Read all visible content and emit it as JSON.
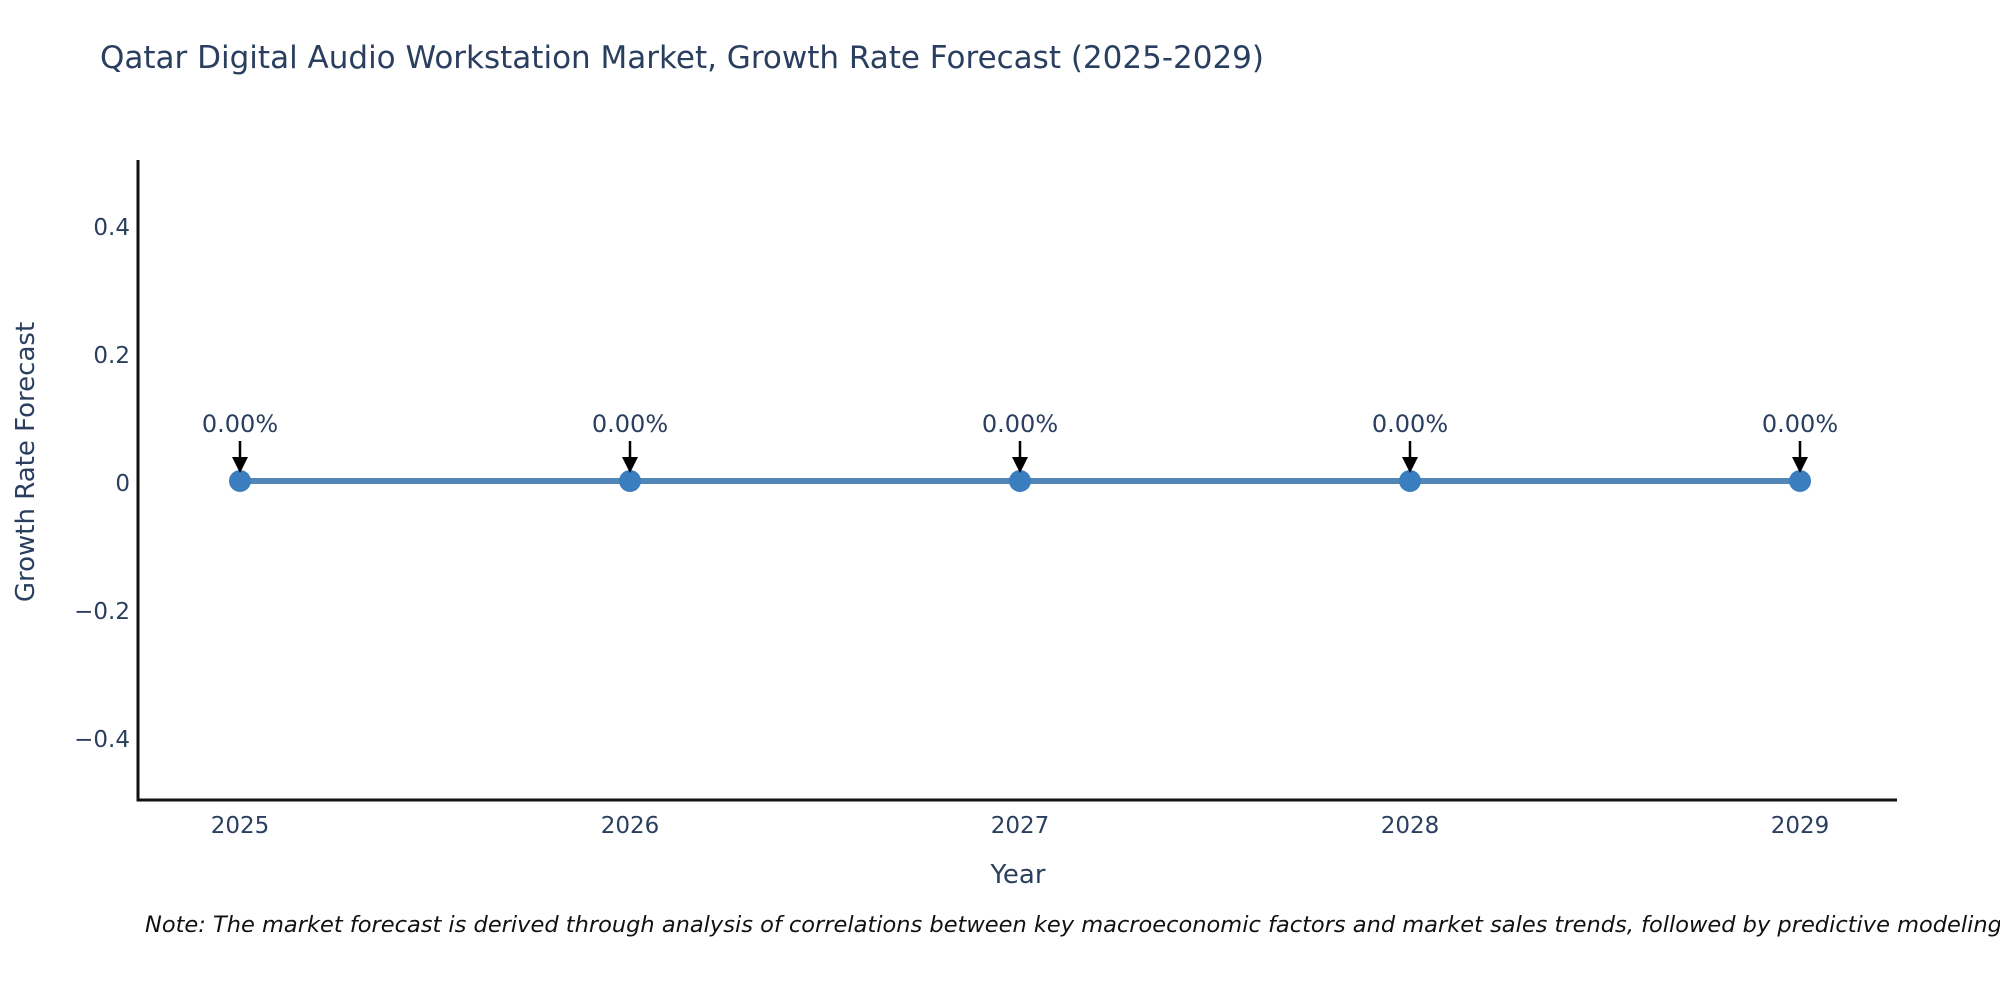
{
  "title": "Qatar Digital Audio Workstation Market, Growth Rate Forecast (2025-2029)",
  "note": "Note: The market forecast is derived through analysis of correlations between key macroeconomic factors and market sales trends, followed by predictive modeling to project future sales",
  "chart_data": {
    "type": "line",
    "title": "Qatar Digital Audio Workstation Market, Growth Rate Forecast (2025-2029)",
    "xlabel": "Year",
    "ylabel": "Growth Rate Forecast",
    "categories": [
      "2025",
      "2026",
      "2027",
      "2028",
      "2029"
    ],
    "values": [
      0,
      0,
      0,
      0,
      0
    ],
    "point_labels": [
      "0.00%",
      "0.00%",
      "0.00%",
      "0.00%",
      "0.00%"
    ],
    "ylim": [
      -0.5,
      0.5
    ],
    "yticks": [
      0.4,
      0.2,
      0,
      -0.2,
      -0.4
    ],
    "ytick_labels": [
      "0.4",
      "0.2",
      "0",
      "−0.2",
      "−0.4"
    ],
    "grid": false,
    "legend": false,
    "annotation_arrows": true,
    "colors": {
      "line": "#5286b6",
      "marker": "#3b7ec0",
      "axis": "#111111",
      "text": "#2a3f5f",
      "arrow": "#000000",
      "background": "#ffffff"
    }
  }
}
